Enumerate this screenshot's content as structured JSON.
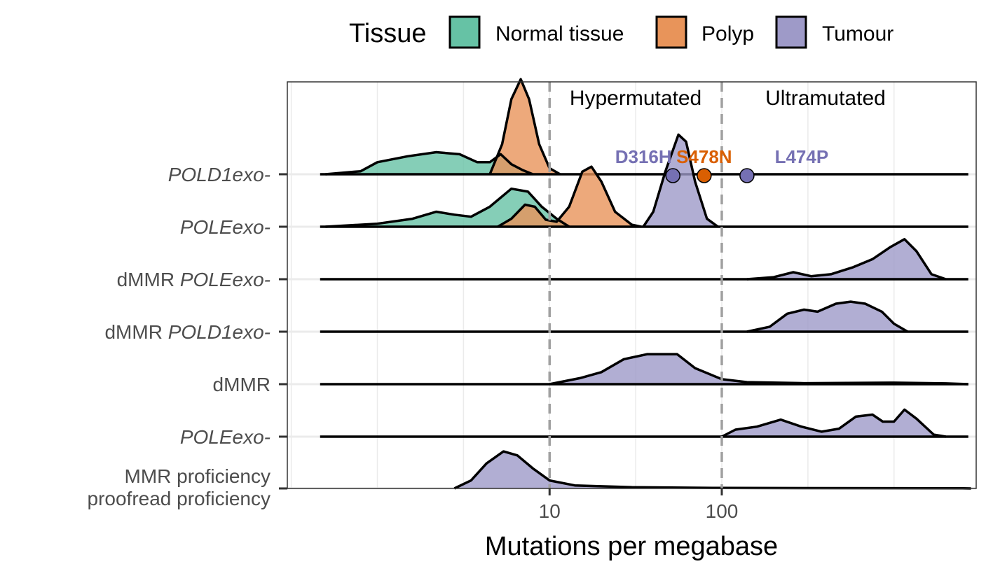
{
  "chart_data": {
    "type": "ridgeline-density",
    "xlabel": "Mutations per megabase",
    "x_scale": "log10",
    "xlim": [
      0.3,
      3000
    ],
    "x_ticks": [
      10,
      100
    ],
    "x_tick_labels": [
      "10",
      "100"
    ],
    "grid": true,
    "legend": {
      "title": "Tissue",
      "position": "top",
      "entries": [
        {
          "label": "Normal tissue",
          "color": "#66c2a5"
        },
        {
          "label": "Polyp",
          "color": "#e8945a"
        },
        {
          "label": "Tumour",
          "color": "#9e9ac8"
        }
      ]
    },
    "reference_lines": [
      10,
      100
    ],
    "regions": [
      {
        "label": "Hypermutated",
        "x": 31.6
      },
      {
        "label": "Ultramutated",
        "x": 400
      }
    ],
    "rows": [
      {
        "label_plain": "",
        "label_italic": "POLD1exo-",
        "densities": [
          {
            "tissue": "Normal tissue",
            "points": [
              [
                0.5,
                0
              ],
              [
                0.8,
                0.03
              ],
              [
                1.0,
                0.12
              ],
              [
                1.5,
                0.18
              ],
              [
                2.2,
                0.22
              ],
              [
                3.0,
                0.2
              ],
              [
                3.8,
                0.12
              ],
              [
                4.5,
                0.12
              ],
              [
                5.2,
                0.2
              ],
              [
                6.0,
                0.1
              ],
              [
                7.0,
                0.04
              ],
              [
                8.0,
                0
              ]
            ]
          },
          {
            "tissue": "Polyp",
            "points": [
              [
                4.5,
                0
              ],
              [
                5.3,
                0.3
              ],
              [
                6.0,
                0.75
              ],
              [
                6.8,
                0.95
              ],
              [
                7.6,
                0.75
              ],
              [
                8.7,
                0.3
              ],
              [
                10.0,
                0.06
              ],
              [
                11.5,
                0
              ]
            ]
          }
        ]
      },
      {
        "label_plain": "",
        "label_italic": "POLEexo-",
        "densities": [
          {
            "tissue": "Normal tissue",
            "points": [
              [
                0.5,
                0
              ],
              [
                1.0,
                0.03
              ],
              [
                1.6,
                0.08
              ],
              [
                2.2,
                0.15
              ],
              [
                2.8,
                0.12
              ],
              [
                3.5,
                0.1
              ],
              [
                4.5,
                0.2
              ],
              [
                6.0,
                0.38
              ],
              [
                7.5,
                0.35
              ],
              [
                9.0,
                0.2
              ],
              [
                11.0,
                0.08
              ],
              [
                13.0,
                0
              ]
            ]
          },
          {
            "tissue": "Polyp",
            "points": [
              [
                5.0,
                0
              ],
              [
                6.0,
                0.08
              ],
              [
                7.2,
                0.22
              ],
              [
                8.2,
                0.2
              ],
              [
                9.5,
                0.07
              ],
              [
                11.0,
                0.05
              ],
              [
                13.0,
                0.2
              ],
              [
                15.5,
                0.55
              ],
              [
                17.5,
                0.6
              ],
              [
                20.0,
                0.45
              ],
              [
                24.0,
                0.15
              ],
              [
                30.0,
                0.02
              ],
              [
                34.0,
                0
              ]
            ]
          },
          {
            "tissue": "Tumour",
            "points": [
              [
                35.0,
                0
              ],
              [
                40.0,
                0.15
              ],
              [
                47.0,
                0.55
              ],
              [
                56.0,
                0.92
              ],
              [
                62.0,
                0.85
              ],
              [
                70.0,
                0.45
              ],
              [
                82.0,
                0.08
              ],
              [
                95.0,
                0
              ]
            ]
          }
        ]
      },
      {
        "label_plain": "dMMR ",
        "label_italic": "POLEexo-",
        "densities": [
          {
            "tissue": "Tumour",
            "points": [
              [
                140,
                0
              ],
              [
                200,
                0.02
              ],
              [
                260,
                0.07
              ],
              [
                330,
                0.03
              ],
              [
                430,
                0.05
              ],
              [
                580,
                0.12
              ],
              [
                750,
                0.2
              ],
              [
                950,
                0.32
              ],
              [
                1150,
                0.4
              ],
              [
                1350,
                0.28
              ],
              [
                1650,
                0.05
              ],
              [
                2000,
                0
              ]
            ]
          }
        ]
      },
      {
        "label_plain": "dMMR ",
        "label_italic": "POLD1exo-",
        "densities": [
          {
            "tissue": "Tumour",
            "points": [
              [
                140,
                0
              ],
              [
                190,
                0.05
              ],
              [
                240,
                0.18
              ],
              [
                300,
                0.22
              ],
              [
                360,
                0.2
              ],
              [
                460,
                0.28
              ],
              [
                560,
                0.3
              ],
              [
                680,
                0.28
              ],
              [
                850,
                0.2
              ],
              [
                1000,
                0.08
              ],
              [
                1200,
                0
              ]
            ]
          }
        ]
      },
      {
        "label_plain": "dMMR",
        "label_italic": "",
        "densities": [
          {
            "tissue": "Tumour",
            "points": [
              [
                10,
                0
              ],
              [
                15,
                0.06
              ],
              [
                20,
                0.12
              ],
              [
                27,
                0.25
              ],
              [
                37,
                0.3
              ],
              [
                55,
                0.3
              ],
              [
                70,
                0.16
              ],
              [
                100,
                0.05
              ],
              [
                140,
                0.02
              ],
              [
                300,
                0.01
              ],
              [
                1000,
                0.015
              ],
              [
                2000,
                0.008
              ],
              [
                2700,
                0
              ]
            ]
          }
        ]
      },
      {
        "label_plain": "",
        "label_italic": "POLEexo-",
        "densities": [
          {
            "tissue": "Tumour",
            "points": [
              [
                100,
                0
              ],
              [
                120,
                0.07
              ],
              [
                160,
                0.1
              ],
              [
                220,
                0.17
              ],
              [
                290,
                0.1
              ],
              [
                380,
                0.05
              ],
              [
                480,
                0.08
              ],
              [
                600,
                0.2
              ],
              [
                750,
                0.22
              ],
              [
                860,
                0.15
              ],
              [
                1000,
                0.15
              ],
              [
                1150,
                0.27
              ],
              [
                1350,
                0.18
              ],
              [
                1700,
                0.02
              ],
              [
                2000,
                0
              ]
            ]
          }
        ]
      },
      {
        "label_plain": "MMR proficiency",
        "label_plain2": "proofread proficiency",
        "label_italic": "",
        "densities": [
          {
            "tissue": "Tumour",
            "points": [
              [
                2.8,
                0
              ],
              [
                3.5,
                0.08
              ],
              [
                4.3,
                0.25
              ],
              [
                5.4,
                0.37
              ],
              [
                6.5,
                0.33
              ],
              [
                8.0,
                0.2
              ],
              [
                10.0,
                0.08
              ],
              [
                14.0,
                0.03
              ],
              [
                30.0,
                0.012
              ],
              [
                100.0,
                0.005
              ],
              [
                1000.0,
                0.003
              ],
              [
                2500.0,
                0.002
              ],
              [
                2800.0,
                0
              ]
            ]
          }
        ]
      }
    ],
    "mutations": [
      {
        "label": "D316H",
        "x": 52,
        "row": 0,
        "color": "#7570b3",
        "point_color": "#7570b3"
      },
      {
        "label": "S478N",
        "x": 79,
        "row": 0,
        "color": "#d95f02",
        "point_color": "#d95f02"
      },
      {
        "label": "L474P",
        "x": 140,
        "row": 0,
        "color": "#7570b3",
        "point_color": "#7570b3"
      }
    ]
  }
}
